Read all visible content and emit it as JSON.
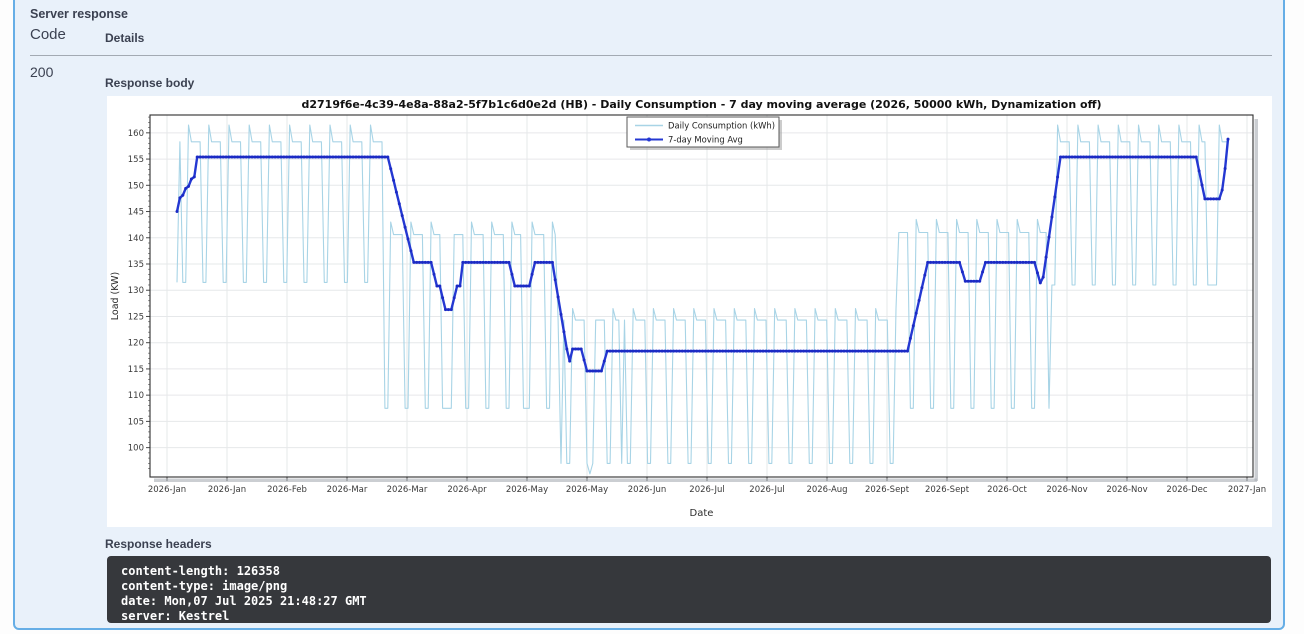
{
  "panel": {
    "title": "Server response",
    "code_header": "Code",
    "details_header": "Details",
    "status_code": "200",
    "response_body_label": "Response body",
    "response_headers_label": "Response headers",
    "headers": [
      "content-length: 126358",
      "content-type: image/png",
      "date: Mon,07 Jul 2025 21:48:27 GMT",
      "server: Kestrel"
    ],
    "accent_color": "#66aee6",
    "panel_bg_color": "#e9f1fa",
    "headers_box_color": "#36383c"
  },
  "chart_data": {
    "type": "line",
    "title": "d2719f6e-4c39-4e8a-88a2-5f7b1c6d0e2d (HB) - Daily Consumption  - 7 day moving average (2026, 50000 kWh, Dynamization off)",
    "xlabel": "Date",
    "ylabel": "Load (KW)",
    "ylim": [
      94.4,
      163.4
    ],
    "yticks": [
      100,
      105,
      110,
      115,
      120,
      125,
      130,
      135,
      140,
      145,
      150,
      155,
      160
    ],
    "xticklabels": [
      "2026-Jan",
      "2026-Jan",
      "2026-Feb",
      "2026-Mar",
      "2026-Mar",
      "2026-Apr",
      "2026-May",
      "2026-May",
      "2026-Jun",
      "2026-Jul",
      "2026-Jul",
      "2026-Aug",
      "2026-Sept",
      "2026-Sept",
      "2026-Oct",
      "2026-Nov",
      "2026-Nov",
      "2026-Dec",
      "2027-Jan"
    ],
    "grid": true,
    "legend_position": "top-center",
    "x_days": 365,
    "legend": [
      {
        "label": "Daily Consumption (kWh)",
        "color": "#a8d4e6",
        "marker": false
      },
      {
        "label": "7-day Moving Avg",
        "color": "#2438d2",
        "marker": true
      }
    ],
    "series": [
      {
        "name": "Daily Consumption (kWh)",
        "color": "#a8d4e6",
        "pattern_segments": [
          {
            "start": 0,
            "end": 71,
            "peak": 161.5,
            "plateau": 158.3,
            "low": 131.5
          },
          {
            "start": 72,
            "end": 131,
            "peak": 143.0,
            "plateau": 140.6,
            "low": 107.5
          },
          {
            "start": 132,
            "end": 249,
            "peak": 126.5,
            "plateau": 124.3,
            "low": 97.0
          },
          {
            "start": 250,
            "end": 302,
            "peak": 143.5,
            "plateau": 141.0,
            "low": 107.5
          },
          {
            "start": 303,
            "end": 364,
            "peak": 161.5,
            "plateau": 158.3,
            "low": 131.0
          }
        ],
        "holiday_low_days": [
          0,
          92,
          95,
          120,
          133,
          144,
          154,
          302,
          357,
          358
        ],
        "overrides": {
          "143": 95.0
        }
      },
      {
        "name": "7-day Moving Avg",
        "color": "#2438d2",
        "marker_color": "#1b2ac4",
        "breakpoints": [
          [
            0,
            145.0
          ],
          [
            1,
            147.6
          ],
          [
            2,
            148.1
          ],
          [
            3,
            149.4
          ],
          [
            4,
            149.8
          ],
          [
            5,
            151.2
          ],
          [
            6,
            151.6
          ],
          [
            7,
            155.4
          ],
          [
            73,
            155.4
          ],
          [
            82,
            135.3
          ],
          [
            88,
            135.3
          ],
          [
            90,
            130.8
          ],
          [
            91,
            130.8
          ],
          [
            93,
            126.3
          ],
          [
            95,
            126.3
          ],
          [
            97,
            130.8
          ],
          [
            98,
            130.8
          ],
          [
            99,
            135.3
          ],
          [
            115,
            135.3
          ],
          [
            117,
            130.8
          ],
          [
            122,
            130.8
          ],
          [
            124,
            135.3
          ],
          [
            130,
            135.3
          ],
          [
            135,
            118.8
          ],
          [
            136,
            116.5
          ],
          [
            137,
            118.8
          ],
          [
            140,
            118.8
          ],
          [
            142,
            114.6
          ],
          [
            147,
            114.6
          ],
          [
            149,
            118.4
          ],
          [
            253,
            118.4
          ],
          [
            260,
            135.3
          ],
          [
            271,
            135.3
          ],
          [
            273,
            131.7
          ],
          [
            278,
            131.7
          ],
          [
            280,
            135.3
          ],
          [
            297,
            135.3
          ],
          [
            299,
            131.4
          ],
          [
            300,
            132.5
          ],
          [
            306,
            155.4
          ],
          [
            353,
            155.4
          ],
          [
            356,
            147.4
          ],
          [
            361,
            147.4
          ],
          [
            362,
            149.1
          ],
          [
            363,
            153.2
          ],
          [
            364,
            158.8
          ]
        ]
      }
    ]
  }
}
